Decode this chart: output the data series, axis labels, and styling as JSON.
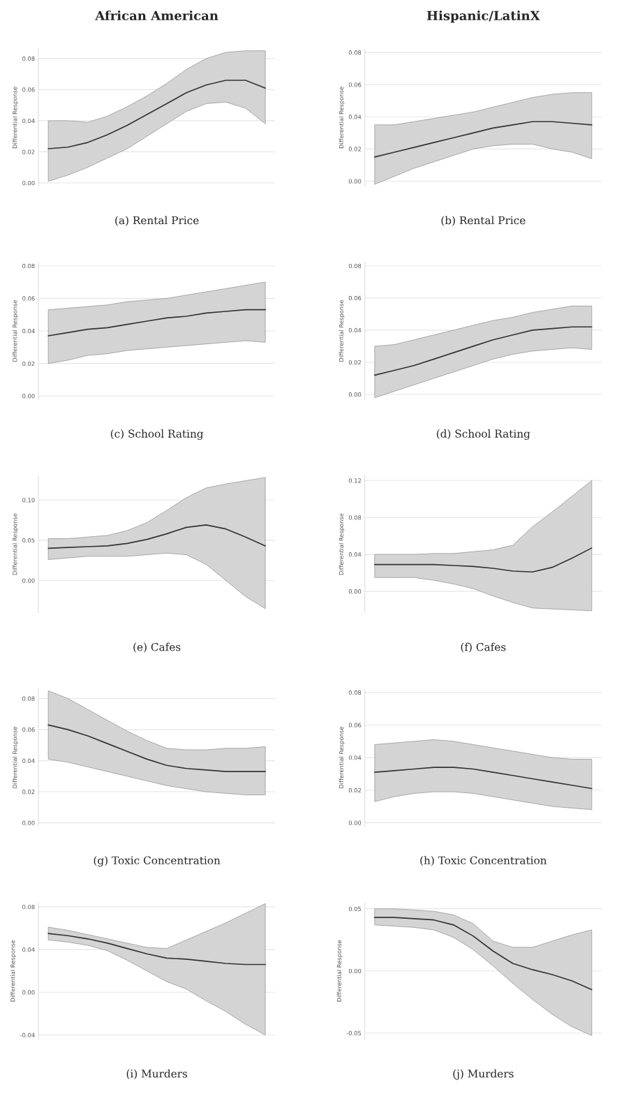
{
  "chart_data": [
    {
      "type": "line",
      "title": "African American",
      "ylabel": "Differential Response",
      "annotations": [
        "(a) Rental Price"
      ],
      "categories": [
        null,
        null,
        null,
        null,
        null,
        null,
        null,
        null,
        null,
        null,
        null,
        null
      ],
      "tick_labels": "y",
      "grid": "y",
      "ylim": [
        -0.002,
        0.086
      ],
      "yticks": [
        {
          "value": 0,
          "label": "0.00"
        },
        {
          "value": 0.02,
          "label": "0.02"
        },
        {
          "value": 0.04,
          "label": "0.04"
        },
        {
          "value": 0.06,
          "label": "0.06"
        },
        {
          "value": 0.08,
          "label": "0.08"
        }
      ],
      "series": [
        {
          "color": "#333333",
          "values": [
            0.022,
            0.023,
            0.026,
            0.031,
            0.037,
            0.044,
            0.051,
            0.058,
            0.063,
            0.066,
            0.066,
            0.061
          ],
          "upper": [
            0.04,
            0.04,
            0.039,
            0.043,
            0.049,
            0.056,
            0.064,
            0.073,
            0.08,
            0.084,
            0.085,
            0.085
          ],
          "lower": [
            0.001,
            0.005,
            0.01,
            0.016,
            0.022,
            0.03,
            0.038,
            0.046,
            0.051,
            0.052,
            0.048,
            0.038
          ]
        }
      ]
    },
    {
      "type": "line",
      "title": "Hispanic/LatinX",
      "ylabel": "Differential Response",
      "annotations": [
        "(b) Rental Price"
      ],
      "categories": [
        null,
        null,
        null,
        null,
        null,
        null,
        null,
        null,
        null,
        null,
        null,
        null
      ],
      "tick_labels": "y",
      "grid": "y",
      "ylim": [
        -0.003,
        0.082
      ],
      "yticks": [
        {
          "value": 0,
          "label": "0.00"
        },
        {
          "value": 0.02,
          "label": "0.02"
        },
        {
          "value": 0.04,
          "label": "0.04"
        },
        {
          "value": 0.06,
          "label": "0.06"
        },
        {
          "value": 0.08,
          "label": "0.08"
        }
      ],
      "series": [
        {
          "color": "#333333",
          "values": [
            0.015,
            0.018,
            0.021,
            0.024,
            0.027,
            0.03,
            0.033,
            0.035,
            0.037,
            0.037,
            0.036,
            0.035
          ],
          "upper": [
            0.035,
            0.035,
            0.037,
            0.039,
            0.041,
            0.043,
            0.046,
            0.049,
            0.052,
            0.054,
            0.055,
            0.055
          ],
          "lower": [
            -0.002,
            0.003,
            0.008,
            0.012,
            0.016,
            0.02,
            0.022,
            0.023,
            0.023,
            0.02,
            0.018,
            0.014
          ]
        }
      ]
    },
    {
      "type": "line",
      "ylabel": "Differential Response",
      "annotations": [
        "(c) School Rating"
      ],
      "categories": [
        null,
        null,
        null,
        null,
        null,
        null,
        null,
        null,
        null,
        null,
        null,
        null
      ],
      "tick_labels": "y",
      "grid": "y",
      "ylim": [
        -0.002,
        0.082
      ],
      "yticks": [
        {
          "value": 0,
          "label": "0.00"
        },
        {
          "value": 0.02,
          "label": "0.02"
        },
        {
          "value": 0.04,
          "label": "0.04"
        },
        {
          "value": 0.06,
          "label": "0.06"
        },
        {
          "value": 0.08,
          "label": "0.08"
        }
      ],
      "series": [
        {
          "color": "#333333",
          "values": [
            0.037,
            0.039,
            0.041,
            0.042,
            0.044,
            0.046,
            0.048,
            0.049,
            0.051,
            0.052,
            0.053,
            0.053
          ],
          "upper": [
            0.053,
            0.054,
            0.055,
            0.056,
            0.058,
            0.059,
            0.06,
            0.062,
            0.064,
            0.066,
            0.068,
            0.07
          ],
          "lower": [
            0.02,
            0.022,
            0.025,
            0.026,
            0.028,
            0.029,
            0.03,
            0.031,
            0.032,
            0.033,
            0.034,
            0.033
          ]
        }
      ]
    },
    {
      "type": "line",
      "ylabel": "Differential Response",
      "annotations": [
        "(d) School Rating"
      ],
      "categories": [
        null,
        null,
        null,
        null,
        null,
        null,
        null,
        null,
        null,
        null,
        null,
        null
      ],
      "tick_labels": "y",
      "grid": "y",
      "ylim": [
        -0.003,
        0.082
      ],
      "yticks": [
        {
          "value": 0,
          "label": "0.00"
        },
        {
          "value": 0.02,
          "label": "0.02"
        },
        {
          "value": 0.04,
          "label": "0.04"
        },
        {
          "value": 0.06,
          "label": "0.06"
        },
        {
          "value": 0.08,
          "label": "0.08"
        }
      ],
      "series": [
        {
          "color": "#333333",
          "values": [
            0.012,
            0.015,
            0.018,
            0.022,
            0.026,
            0.03,
            0.034,
            0.037,
            0.04,
            0.041,
            0.042,
            0.042
          ],
          "upper": [
            0.03,
            0.031,
            0.034,
            0.037,
            0.04,
            0.043,
            0.046,
            0.048,
            0.051,
            0.053,
            0.055,
            0.055
          ],
          "lower": [
            -0.002,
            0.002,
            0.006,
            0.01,
            0.014,
            0.018,
            0.022,
            0.025,
            0.027,
            0.028,
            0.029,
            0.028
          ]
        }
      ]
    },
    {
      "type": "line",
      "ylabel": "Differential Response",
      "annotations": [
        "(e) Cafes"
      ],
      "categories": [
        null,
        null,
        null,
        null,
        null,
        null,
        null,
        null,
        null,
        null,
        null,
        null
      ],
      "tick_labels": "y",
      "grid": "y",
      "ylim": [
        -0.04,
        0.13
      ],
      "yticks": [
        {
          "value": 0,
          "label": "0.00"
        },
        {
          "value": 0.05,
          "label": "0.05"
        },
        {
          "value": 0.1,
          "label": "0.10"
        }
      ],
      "series": [
        {
          "color": "#333333",
          "values": [
            0.04,
            0.041,
            0.042,
            0.043,
            0.046,
            0.051,
            0.058,
            0.066,
            0.069,
            0.064,
            0.054,
            0.043
          ],
          "upper": [
            0.052,
            0.052,
            0.054,
            0.056,
            0.062,
            0.072,
            0.087,
            0.103,
            0.115,
            0.12,
            0.124,
            0.128
          ],
          "lower": [
            0.026,
            0.028,
            0.03,
            0.03,
            0.03,
            0.032,
            0.034,
            0.032,
            0.02,
            0.0,
            -0.02,
            -0.035
          ]
        }
      ]
    },
    {
      "type": "line",
      "ylabel": "Differential Response",
      "annotations": [
        "(f) Cafes"
      ],
      "categories": [
        null,
        null,
        null,
        null,
        null,
        null,
        null,
        null,
        null,
        null,
        null,
        null
      ],
      "tick_labels": "y",
      "grid": "y",
      "ylim": [
        -0.023,
        0.125
      ],
      "yticks": [
        {
          "value": 0,
          "label": "0.00"
        },
        {
          "value": 0.04,
          "label": "0.04"
        },
        {
          "value": 0.08,
          "label": "0.08"
        },
        {
          "value": 0.12,
          "label": "0.12"
        }
      ],
      "series": [
        {
          "color": "#333333",
          "values": [
            0.029,
            0.029,
            0.029,
            0.029,
            0.028,
            0.027,
            0.025,
            0.022,
            0.021,
            0.026,
            0.036,
            0.047
          ],
          "upper": [
            0.04,
            0.04,
            0.04,
            0.041,
            0.041,
            0.043,
            0.045,
            0.05,
            0.07,
            0.086,
            0.103,
            0.12
          ],
          "lower": [
            0.015,
            0.015,
            0.015,
            0.012,
            0.008,
            0.003,
            -0.005,
            -0.012,
            -0.018,
            -0.019,
            -0.02,
            -0.021
          ]
        }
      ]
    },
    {
      "type": "line",
      "ylabel": "Differential Response",
      "annotations": [
        "(g) Toxic Concentration"
      ],
      "categories": [
        null,
        null,
        null,
        null,
        null,
        null,
        null,
        null,
        null,
        null,
        null,
        null
      ],
      "tick_labels": "y",
      "grid": "y",
      "ylim": [
        -0.002,
        0.086
      ],
      "yticks": [
        {
          "value": 0,
          "label": "0.00"
        },
        {
          "value": 0.02,
          "label": "0.02"
        },
        {
          "value": 0.04,
          "label": "0.04"
        },
        {
          "value": 0.06,
          "label": "0.06"
        },
        {
          "value": 0.08,
          "label": "0.08"
        }
      ],
      "series": [
        {
          "color": "#333333",
          "values": [
            0.063,
            0.06,
            0.056,
            0.051,
            0.046,
            0.041,
            0.037,
            0.035,
            0.034,
            0.033,
            0.033,
            0.033
          ],
          "upper": [
            0.085,
            0.08,
            0.073,
            0.066,
            0.059,
            0.053,
            0.048,
            0.047,
            0.047,
            0.048,
            0.048,
            0.049
          ],
          "lower": [
            0.041,
            0.039,
            0.036,
            0.033,
            0.03,
            0.027,
            0.024,
            0.022,
            0.02,
            0.019,
            0.018,
            0.018
          ]
        }
      ]
    },
    {
      "type": "line",
      "ylabel": "Differential Response",
      "annotations": [
        "(h) Toxic Concentration"
      ],
      "categories": [
        null,
        null,
        null,
        null,
        null,
        null,
        null,
        null,
        null,
        null,
        null,
        null
      ],
      "tick_labels": "y",
      "grid": "y",
      "ylim": [
        -0.002,
        0.082
      ],
      "yticks": [
        {
          "value": 0,
          "label": "0.00"
        },
        {
          "value": 0.02,
          "label": "0.02"
        },
        {
          "value": 0.04,
          "label": "0.04"
        },
        {
          "value": 0.06,
          "label": "0.06"
        },
        {
          "value": 0.08,
          "label": "0.08"
        }
      ],
      "series": [
        {
          "color": "#333333",
          "values": [
            0.031,
            0.032,
            0.033,
            0.034,
            0.034,
            0.033,
            0.031,
            0.029,
            0.027,
            0.025,
            0.023,
            0.021
          ],
          "upper": [
            0.048,
            0.049,
            0.05,
            0.051,
            0.05,
            0.048,
            0.046,
            0.044,
            0.042,
            0.04,
            0.039,
            0.039
          ],
          "lower": [
            0.013,
            0.016,
            0.018,
            0.019,
            0.019,
            0.018,
            0.016,
            0.014,
            0.012,
            0.01,
            0.009,
            0.008
          ]
        }
      ]
    },
    {
      "type": "line",
      "ylabel": "Differential Response",
      "annotations": [
        "(i) Murders"
      ],
      "categories": [
        null,
        null,
        null,
        null,
        null,
        null,
        null,
        null,
        null,
        null,
        null,
        null
      ],
      "tick_labels": "y",
      "grid": "y",
      "ylim": [
        -0.044,
        0.084
      ],
      "yticks": [
        {
          "value": -0.04,
          "label": "-0.04"
        },
        {
          "value": 0,
          "label": "0.00"
        },
        {
          "value": 0.04,
          "label": "0.04"
        },
        {
          "value": 0.08,
          "label": "0.08"
        }
      ],
      "series": [
        {
          "color": "#333333",
          "values": [
            0.055,
            0.053,
            0.05,
            0.046,
            0.041,
            0.036,
            0.032,
            0.031,
            0.029,
            0.027,
            0.026,
            0.026
          ],
          "upper": [
            0.061,
            0.058,
            0.054,
            0.05,
            0.046,
            0.042,
            0.041,
            0.049,
            0.057,
            0.065,
            0.074,
            0.083
          ],
          "lower": [
            0.049,
            0.047,
            0.044,
            0.039,
            0.03,
            0.02,
            0.01,
            0.003,
            -0.008,
            -0.018,
            -0.03,
            -0.04
          ]
        }
      ]
    },
    {
      "type": "line",
      "ylabel": "Differential Response",
      "annotations": [
        "(j) Murders"
      ],
      "categories": [
        null,
        null,
        null,
        null,
        null,
        null,
        null,
        null,
        null,
        null,
        null,
        null
      ],
      "tick_labels": "y",
      "grid": "y",
      "ylim": [
        -0.055,
        0.055
      ],
      "yticks": [
        {
          "value": -0.05,
          "label": "-0.05"
        },
        {
          "value": 0,
          "label": "0.00"
        },
        {
          "value": 0.05,
          "label": "0.05"
        }
      ],
      "series": [
        {
          "color": "#333333",
          "values": [
            0.043,
            0.043,
            0.042,
            0.041,
            0.037,
            0.028,
            0.016,
            0.006,
            0.001,
            -0.003,
            -0.008,
            -0.015
          ],
          "upper": [
            0.05,
            0.05,
            0.049,
            0.048,
            0.045,
            0.038,
            0.024,
            0.019,
            0.019,
            0.024,
            0.029,
            0.033
          ],
          "lower": [
            0.037,
            0.036,
            0.035,
            0.033,
            0.027,
            0.017,
            0.004,
            -0.01,
            -0.023,
            -0.035,
            -0.045,
            -0.052
          ]
        }
      ]
    }
  ]
}
